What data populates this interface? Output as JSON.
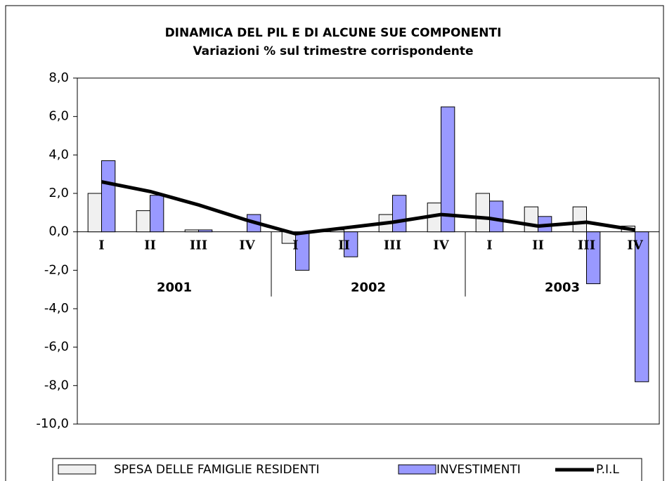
{
  "chart_data": {
    "type": "bar_line",
    "title": "DINAMICA DEL PIL E DI ALCUNE SUE COMPONENTI",
    "subtitle": "Variazioni % sul trimestre corrispondente",
    "categories": [
      "I",
      "II",
      "III",
      "IV",
      "I",
      "II",
      "III",
      "IV",
      "I",
      "II",
      "III",
      "IV"
    ],
    "groups": [
      "2001",
      "2002",
      "2003"
    ],
    "series": [
      {
        "name": "SPESA DELLE FAMIGLIE RESIDENTI",
        "type": "bar",
        "color": "#f0f0f0",
        "values": [
          2.0,
          1.1,
          0.1,
          0.0,
          -0.6,
          0.1,
          0.9,
          1.5,
          2.0,
          1.3,
          1.3,
          0.3
        ]
      },
      {
        "name": "INVESTIMENTI",
        "type": "bar",
        "color": "#9999ff",
        "values": [
          3.7,
          1.9,
          0.1,
          0.9,
          -2.0,
          -1.3,
          1.9,
          6.5,
          1.6,
          0.8,
          -2.7,
          -7.8
        ]
      },
      {
        "name": "P.I.L",
        "type": "line",
        "color": "#000000",
        "values": [
          2.6,
          2.1,
          1.4,
          0.6,
          -0.1,
          0.2,
          0.5,
          0.9,
          0.7,
          0.3,
          0.5,
          0.1
        ]
      }
    ],
    "ylim": [
      -10,
      8
    ],
    "yticks": [
      {
        "value": -10,
        "label": "-10,0"
      },
      {
        "value": -8,
        "label": "-8,0"
      },
      {
        "value": -6,
        "label": "-6,0"
      },
      {
        "value": -4,
        "label": "-4,0"
      },
      {
        "value": -2,
        "label": "-2,0"
      },
      {
        "value": 0,
        "label": "0,0"
      },
      {
        "value": 2,
        "label": "2,0"
      },
      {
        "value": 4,
        "label": "4,0"
      },
      {
        "value": 6,
        "label": "6,0"
      },
      {
        "value": 8,
        "label": "8,0"
      }
    ],
    "legend": "bottom"
  }
}
